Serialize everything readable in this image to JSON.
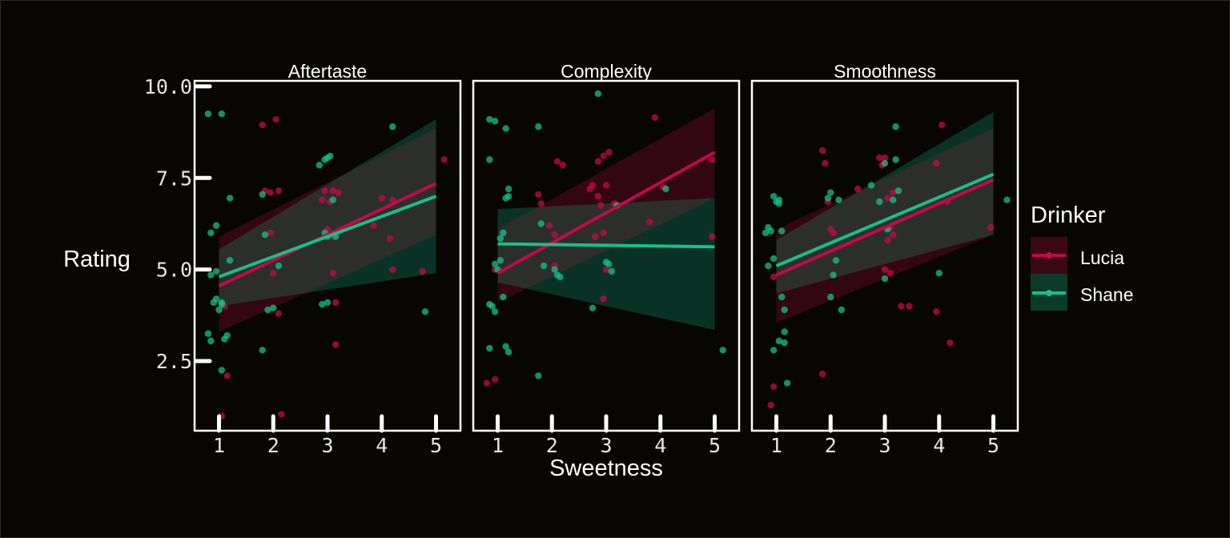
{
  "chart_data": {
    "type": "scatter",
    "xlabel": "Sweetness",
    "ylabel": "Rating",
    "xlim": [
      0.55,
      5.45
    ],
    "ylim": [
      0.6,
      10.15
    ],
    "x_ticks": [
      "1",
      "2",
      "3",
      "4",
      "5"
    ],
    "y_ticks": [
      "2.5",
      "5.0",
      "7.5",
      "10.0"
    ],
    "legend": {
      "title": "Drinker",
      "position": "right"
    },
    "colors": {
      "Lucia": "#c2094a",
      "Shane": "#16c08a",
      "Lucia_band": "#3a0716",
      "Shane_band": "#0b3a2b",
      "overlap_band": "#2e2e2c"
    },
    "panels": [
      {
        "facet": "Aftertaste",
        "series": [
          {
            "name": "Lucia",
            "fit": {
              "x": [
                1,
                5.0
              ],
              "y": [
                4.55,
                7.35
              ]
            },
            "band": {
              "x": [
                1,
                5.0
              ],
              "lower": [
                3.3,
                5.95
              ],
              "upper": [
                5.9,
                8.85
              ]
            },
            "points": [
              [
                1.1,
                4.0
              ],
              [
                1.05,
                1.0
              ],
              [
                1.15,
                2.1
              ],
              [
                1.8,
                8.95
              ],
              [
                1.85,
                7.15
              ],
              [
                1.95,
                7.1
              ],
              [
                1.95,
                6.0
              ],
              [
                2.05,
                9.1
              ],
              [
                2.1,
                7.15
              ],
              [
                2.1,
                3.8
              ],
              [
                2.0,
                4.9
              ],
              [
                2.15,
                1.05
              ],
              [
                2.9,
                6.9
              ],
              [
                2.95,
                7.15
              ],
              [
                3.0,
                6.1
              ],
              [
                3.05,
                6.85
              ],
              [
                3.1,
                7.15
              ],
              [
                3.2,
                7.1
              ],
              [
                3.1,
                5.9
              ],
              [
                3.15,
                4.1
              ],
              [
                3.1,
                4.9
              ],
              [
                3.15,
                2.95
              ],
              [
                4.0,
                6.95
              ],
              [
                4.2,
                6.9
              ],
              [
                3.85,
                6.2
              ],
              [
                4.15,
                5.85
              ],
              [
                4.2,
                5.0
              ],
              [
                4.75,
                4.95
              ],
              [
                5.15,
                8.0
              ]
            ]
          },
          {
            "name": "Shane",
            "fit": {
              "x": [
                1,
                5.0
              ],
              "y": [
                4.8,
                7.0
              ]
            },
            "band": {
              "x": [
                1,
                5.0
              ],
              "lower": [
                4.0,
                4.9
              ],
              "upper": [
                5.55,
                9.1
              ]
            },
            "points": [
              [
                0.8,
                9.25
              ],
              [
                1.05,
                9.25
              ],
              [
                0.85,
                6.0
              ],
              [
                0.95,
                6.2
              ],
              [
                0.85,
                4.85
              ],
              [
                0.95,
                4.95
              ],
              [
                0.9,
                4.1
              ],
              [
                0.95,
                4.2
              ],
              [
                1.05,
                4.05
              ],
              [
                1.05,
                4.1
              ],
              [
                1.0,
                3.9
              ],
              [
                0.8,
                3.25
              ],
              [
                0.85,
                3.05
              ],
              [
                1.1,
                3.1
              ],
              [
                1.15,
                3.2
              ],
              [
                1.2,
                5.25
              ],
              [
                1.2,
                6.95
              ],
              [
                1.05,
                2.25
              ],
              [
                1.8,
                7.05
              ],
              [
                1.85,
                5.95
              ],
              [
                1.9,
                3.9
              ],
              [
                2.0,
                3.95
              ],
              [
                2.1,
                5.1
              ],
              [
                1.8,
                2.8
              ],
              [
                2.85,
                7.85
              ],
              [
                2.95,
                8.0
              ],
              [
                3.0,
                8.05
              ],
              [
                3.05,
                8.1
              ],
              [
                2.95,
                6.0
              ],
              [
                2.9,
                4.05
              ],
              [
                3.0,
                4.1
              ],
              [
                3.0,
                5.9
              ],
              [
                3.1,
                6.9
              ],
              [
                3.15,
                5.9
              ],
              [
                4.2,
                8.9
              ],
              [
                4.8,
                3.85
              ]
            ]
          }
        ]
      },
      {
        "facet": "Complexity",
        "series": [
          {
            "name": "Lucia",
            "fit": {
              "x": [
                1,
                5.0
              ],
              "y": [
                4.9,
                8.2
              ]
            },
            "band": {
              "x": [
                1,
                5.0
              ],
              "lower": [
                4.1,
                6.95
              ],
              "upper": [
                6.1,
                9.4
              ]
            },
            "points": [
              [
                0.8,
                1.9
              ],
              [
                0.95,
                5.0
              ],
              [
                0.95,
                2.0
              ],
              [
                1.75,
                7.05
              ],
              [
                1.8,
                6.8
              ],
              [
                1.95,
                6.2
              ],
              [
                2.05,
                5.95
              ],
              [
                2.05,
                5.1
              ],
              [
                2.1,
                7.95
              ],
              [
                2.2,
                7.85
              ],
              [
                2.7,
                7.2
              ],
              [
                2.75,
                7.3
              ],
              [
                2.8,
                5.9
              ],
              [
                2.85,
                7.95
              ],
              [
                2.85,
                7.0
              ],
              [
                2.9,
                6.75
              ],
              [
                2.95,
                8.1
              ],
              [
                2.95,
                6.0
              ],
              [
                3.0,
                7.3
              ],
              [
                3.05,
                8.2
              ],
              [
                2.95,
                4.2
              ],
              [
                3.0,
                5.0
              ],
              [
                3.15,
                6.8
              ],
              [
                3.8,
                6.3
              ],
              [
                3.9,
                9.15
              ],
              [
                4.05,
                7.25
              ],
              [
                4.95,
                8.0
              ],
              [
                4.95,
                5.9
              ]
            ]
          },
          {
            "name": "Shane",
            "fit": {
              "x": [
                1,
                5.0
              ],
              "y": [
                5.7,
                5.62
              ]
            },
            "band": {
              "x": [
                1,
                5.0
              ],
              "lower": [
                4.65,
                3.35
              ],
              "upper": [
                6.65,
                6.95
              ]
            },
            "points": [
              [
                0.85,
                9.1
              ],
              [
                0.85,
                8.0
              ],
              [
                0.95,
                9.05
              ],
              [
                0.85,
                4.05
              ],
              [
                0.9,
                4.0
              ],
              [
                0.95,
                3.85
              ],
              [
                0.85,
                2.85
              ],
              [
                0.95,
                5.15
              ],
              [
                1.0,
                5.0
              ],
              [
                1.05,
                5.25
              ],
              [
                1.05,
                5.85
              ],
              [
                1.1,
                6.0
              ],
              [
                1.15,
                8.85
              ],
              [
                1.15,
                6.95
              ],
              [
                1.2,
                7.2
              ],
              [
                1.2,
                7.0
              ],
              [
                1.1,
                4.25
              ],
              [
                1.15,
                2.9
              ],
              [
                1.2,
                2.75
              ],
              [
                1.75,
                8.9
              ],
              [
                1.75,
                2.1
              ],
              [
                1.8,
                6.25
              ],
              [
                1.85,
                5.1
              ],
              [
                2.05,
                5.0
              ],
              [
                2.1,
                4.85
              ],
              [
                2.15,
                4.8
              ],
              [
                2.85,
                9.8
              ],
              [
                3.0,
                5.2
              ],
              [
                3.05,
                5.15
              ],
              [
                3.1,
                4.95
              ],
              [
                3.2,
                6.75
              ],
              [
                2.75,
                3.95
              ],
              [
                4.1,
                7.2
              ],
              [
                5.15,
                2.8
              ]
            ]
          }
        ]
      },
      {
        "facet": "Smoothness",
        "series": [
          {
            "name": "Lucia",
            "fit": {
              "x": [
                1,
                5.0
              ],
              "y": [
                4.85,
                7.45
              ]
            },
            "band": {
              "x": [
                1,
                5.0
              ],
              "lower": [
                3.55,
                5.95
              ],
              "upper": [
                6.1,
                8.85
              ]
            },
            "points": [
              [
                0.9,
                1.3
              ],
              [
                0.95,
                1.8
              ],
              [
                0.95,
                4.8
              ],
              [
                1.85,
                8.25
              ],
              [
                1.9,
                7.9
              ],
              [
                1.95,
                6.85
              ],
              [
                2.0,
                6.1
              ],
              [
                2.05,
                6.0
              ],
              [
                1.85,
                2.15
              ],
              [
                2.5,
                7.2
              ],
              [
                2.9,
                8.05
              ],
              [
                2.95,
                7.85
              ],
              [
                3.0,
                8.05
              ],
              [
                3.05,
                5.8
              ],
              [
                3.0,
                5.0
              ],
              [
                3.1,
                4.9
              ],
              [
                3.1,
                6.15
              ],
              [
                3.15,
                7.1
              ],
              [
                3.15,
                5.95
              ],
              [
                3.05,
                6.95
              ],
              [
                3.3,
                4.0
              ],
              [
                3.45,
                4.0
              ],
              [
                3.95,
                7.9
              ],
              [
                4.05,
                8.95
              ],
              [
                4.15,
                6.85
              ],
              [
                4.2,
                3.0
              ],
              [
                3.95,
                3.85
              ],
              [
                4.95,
                6.15
              ]
            ]
          },
          {
            "name": "Shane",
            "fit": {
              "x": [
                1,
                5.0
              ],
              "y": [
                5.1,
                7.6
              ]
            },
            "band": {
              "x": [
                1,
                5.0
              ],
              "lower": [
                4.35,
                5.95
              ],
              "upper": [
                5.8,
                9.3
              ]
            },
            "points": [
              [
                0.8,
                6.0
              ],
              [
                0.85,
                6.15
              ],
              [
                0.9,
                6.05
              ],
              [
                0.95,
                7.0
              ],
              [
                1.0,
                6.85
              ],
              [
                1.05,
                6.8
              ],
              [
                1.05,
                6.9
              ],
              [
                1.1,
                6.05
              ],
              [
                0.85,
                5.1
              ],
              [
                0.95,
                5.3
              ],
              [
                1.1,
                4.25
              ],
              [
                1.15,
                3.9
              ],
              [
                1.15,
                3.3
              ],
              [
                1.05,
                3.05
              ],
              [
                1.15,
                3.0
              ],
              [
                0.95,
                2.8
              ],
              [
                1.2,
                1.9
              ],
              [
                1.95,
                6.95
              ],
              [
                2.0,
                7.1
              ],
              [
                2.1,
                5.25
              ],
              [
                2.15,
                6.9
              ],
              [
                2.05,
                4.85
              ],
              [
                2.0,
                4.25
              ],
              [
                2.2,
                3.9
              ],
              [
                2.75,
                7.3
              ],
              [
                2.9,
                6.85
              ],
              [
                3.0,
                7.9
              ],
              [
                3.05,
                6.1
              ],
              [
                3.15,
                6.9
              ],
              [
                3.2,
                8.0
              ],
              [
                3.25,
                7.15
              ],
              [
                3.2,
                8.9
              ],
              [
                3.0,
                4.75
              ],
              [
                4.0,
                4.9
              ],
              [
                5.25,
                6.9
              ]
            ]
          }
        ]
      }
    ]
  }
}
